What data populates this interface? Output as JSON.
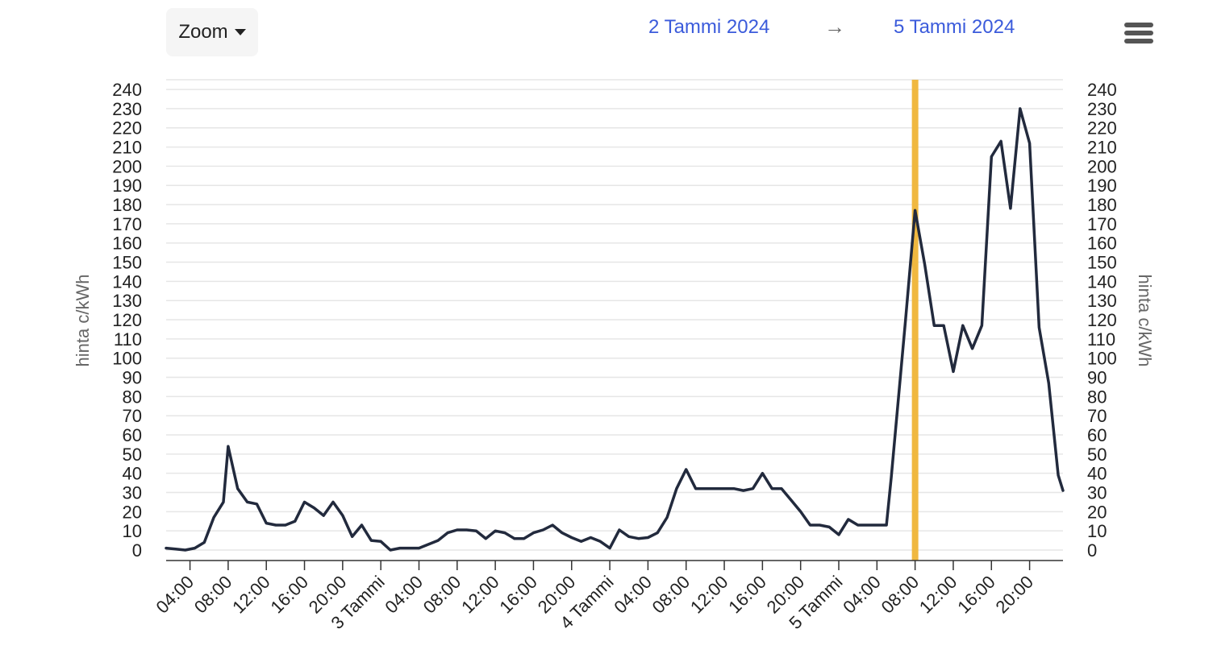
{
  "toolbar": {
    "zoom_label": "Zoom",
    "range_from": "2 Tammi 2024",
    "range_arrow": "→",
    "range_to": "5 Tammi 2024",
    "menu_icon": "hamburger-menu-icon"
  },
  "colors": {
    "series_line": "#222a3d",
    "current_hour_band": "#f0b840",
    "grid": "#e6e6e6"
  },
  "chart_data": {
    "type": "line",
    "title": "",
    "xlabel": "",
    "ylabel": "hinta c/kWh",
    "ylabel_right": "hinta c/kWh",
    "ylim": [
      0,
      240
    ],
    "y_ticks": [
      0,
      10,
      20,
      30,
      40,
      50,
      60,
      70,
      80,
      90,
      100,
      110,
      120,
      130,
      140,
      150,
      160,
      170,
      180,
      190,
      200,
      210,
      220,
      230,
      240
    ],
    "x_start": "2024-01-02 01:30",
    "x_end": "2024-01-05 23:30",
    "x_tick_labels": [
      {
        "time": "2024-01-02 04:00",
        "label": "04:00"
      },
      {
        "time": "2024-01-02 08:00",
        "label": "08:00"
      },
      {
        "time": "2024-01-02 12:00",
        "label": "12:00"
      },
      {
        "time": "2024-01-02 16:00",
        "label": "16:00"
      },
      {
        "time": "2024-01-02 20:00",
        "label": "20:00"
      },
      {
        "time": "2024-01-03 00:00",
        "label": "3 Tammi"
      },
      {
        "time": "2024-01-03 04:00",
        "label": "04:00"
      },
      {
        "time": "2024-01-03 08:00",
        "label": "08:00"
      },
      {
        "time": "2024-01-03 12:00",
        "label": "12:00"
      },
      {
        "time": "2024-01-03 16:00",
        "label": "16:00"
      },
      {
        "time": "2024-01-03 20:00",
        "label": "20:00"
      },
      {
        "time": "2024-01-04 00:00",
        "label": "4 Tammi"
      },
      {
        "time": "2024-01-04 04:00",
        "label": "04:00"
      },
      {
        "time": "2024-01-04 08:00",
        "label": "08:00"
      },
      {
        "time": "2024-01-04 12:00",
        "label": "12:00"
      },
      {
        "time": "2024-01-04 16:00",
        "label": "16:00"
      },
      {
        "time": "2024-01-04 20:00",
        "label": "20:00"
      },
      {
        "time": "2024-01-05 00:00",
        "label": "5 Tammi"
      },
      {
        "time": "2024-01-05 04:00",
        "label": "04:00"
      },
      {
        "time": "2024-01-05 08:00",
        "label": "08:00"
      },
      {
        "time": "2024-01-05 12:00",
        "label": "12:00"
      },
      {
        "time": "2024-01-05 16:00",
        "label": "16:00"
      },
      {
        "time": "2024-01-05 20:00",
        "label": "20:00"
      }
    ],
    "plot_band": {
      "time": "2024-01-05 08:00"
    },
    "series": [
      {
        "points": [
          [
            "2024-01-02 01:30",
            1
          ],
          [
            "2024-01-02 02:30",
            0.5
          ],
          [
            "2024-01-02 03:30",
            0
          ],
          [
            "2024-01-02 04:30",
            1
          ],
          [
            "2024-01-02 05:30",
            4
          ],
          [
            "2024-01-02 06:30",
            17
          ],
          [
            "2024-01-02 07:30",
            25
          ],
          [
            "2024-01-02 08:00",
            54
          ],
          [
            "2024-01-02 09:00",
            32
          ],
          [
            "2024-01-02 10:00",
            25
          ],
          [
            "2024-01-02 11:00",
            24
          ],
          [
            "2024-01-02 12:00",
            14
          ],
          [
            "2024-01-02 13:00",
            13
          ],
          [
            "2024-01-02 14:00",
            13
          ],
          [
            "2024-01-02 15:00",
            15
          ],
          [
            "2024-01-02 16:00",
            25
          ],
          [
            "2024-01-02 17:00",
            22
          ],
          [
            "2024-01-02 18:00",
            18
          ],
          [
            "2024-01-02 19:00",
            25
          ],
          [
            "2024-01-02 20:00",
            18
          ],
          [
            "2024-01-02 21:00",
            7
          ],
          [
            "2024-01-02 22:00",
            13
          ],
          [
            "2024-01-02 23:00",
            5
          ],
          [
            "2024-01-03 00:00",
            4.5
          ],
          [
            "2024-01-03 01:00",
            0
          ],
          [
            "2024-01-03 02:00",
            1
          ],
          [
            "2024-01-03 03:00",
            1
          ],
          [
            "2024-01-03 04:00",
            1
          ],
          [
            "2024-01-03 05:00",
            3
          ],
          [
            "2024-01-03 06:00",
            5
          ],
          [
            "2024-01-03 07:00",
            9
          ],
          [
            "2024-01-03 08:00",
            10.5
          ],
          [
            "2024-01-03 09:00",
            10.5
          ],
          [
            "2024-01-03 10:00",
            10
          ],
          [
            "2024-01-03 11:00",
            6
          ],
          [
            "2024-01-03 12:00",
            10
          ],
          [
            "2024-01-03 13:00",
            9
          ],
          [
            "2024-01-03 14:00",
            6
          ],
          [
            "2024-01-03 15:00",
            6
          ],
          [
            "2024-01-03 16:00",
            9
          ],
          [
            "2024-01-03 17:00",
            10.5
          ],
          [
            "2024-01-03 18:00",
            13
          ],
          [
            "2024-01-03 19:00",
            9
          ],
          [
            "2024-01-03 20:00",
            6.5
          ],
          [
            "2024-01-03 21:00",
            4.5
          ],
          [
            "2024-01-03 22:00",
            6.5
          ],
          [
            "2024-01-03 23:00",
            4.5
          ],
          [
            "2024-01-04 00:00",
            1
          ],
          [
            "2024-01-04 01:00",
            10.5
          ],
          [
            "2024-01-04 02:00",
            7
          ],
          [
            "2024-01-04 03:00",
            6
          ],
          [
            "2024-01-04 04:00",
            6.5
          ],
          [
            "2024-01-04 05:00",
            9
          ],
          [
            "2024-01-04 06:00",
            17
          ],
          [
            "2024-01-04 07:00",
            32
          ],
          [
            "2024-01-04 08:00",
            42
          ],
          [
            "2024-01-04 09:00",
            32
          ],
          [
            "2024-01-04 10:00",
            32
          ],
          [
            "2024-01-04 11:00",
            32
          ],
          [
            "2024-01-04 12:00",
            32
          ],
          [
            "2024-01-04 13:00",
            32
          ],
          [
            "2024-01-04 14:00",
            31
          ],
          [
            "2024-01-04 15:00",
            32
          ],
          [
            "2024-01-04 16:00",
            40
          ],
          [
            "2024-01-04 17:00",
            32
          ],
          [
            "2024-01-04 18:00",
            32
          ],
          [
            "2024-01-04 19:00",
            26
          ],
          [
            "2024-01-04 20:00",
            20
          ],
          [
            "2024-01-04 21:00",
            13
          ],
          [
            "2024-01-04 22:00",
            13
          ],
          [
            "2024-01-04 23:00",
            12
          ],
          [
            "2024-01-05 00:00",
            8
          ],
          [
            "2024-01-05 01:00",
            16
          ],
          [
            "2024-01-05 02:00",
            13
          ],
          [
            "2024-01-05 03:00",
            13
          ],
          [
            "2024-01-05 04:00",
            13
          ],
          [
            "2024-01-05 05:00",
            13
          ],
          [
            "2024-01-05 05:30",
            38
          ],
          [
            "2024-01-05 07:00",
            120
          ],
          [
            "2024-01-05 08:00",
            177
          ],
          [
            "2024-01-05 09:00",
            149
          ],
          [
            "2024-01-05 10:00",
            117
          ],
          [
            "2024-01-05 11:00",
            117
          ],
          [
            "2024-01-05 12:00",
            93
          ],
          [
            "2024-01-05 13:00",
            117
          ],
          [
            "2024-01-05 14:00",
            105
          ],
          [
            "2024-01-05 15:00",
            117
          ],
          [
            "2024-01-05 16:00",
            205
          ],
          [
            "2024-01-05 17:00",
            213
          ],
          [
            "2024-01-05 18:00",
            178
          ],
          [
            "2024-01-05 19:00",
            230
          ],
          [
            "2024-01-05 20:00",
            212
          ],
          [
            "2024-01-05 21:00",
            116
          ],
          [
            "2024-01-05 22:00",
            87
          ],
          [
            "2024-01-05 23:00",
            39
          ],
          [
            "2024-01-05 23:30",
            31
          ]
        ]
      }
    ]
  }
}
